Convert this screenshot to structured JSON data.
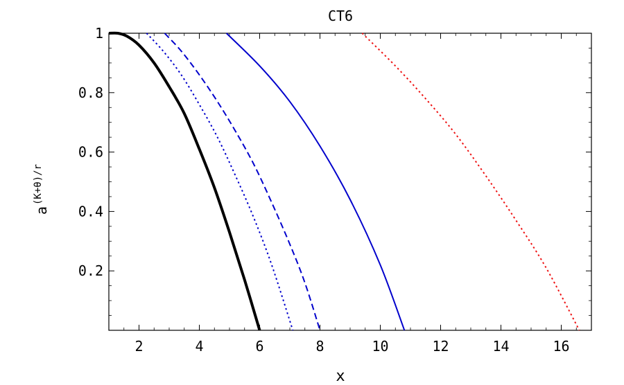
{
  "chart_data": {
    "type": "line",
    "title": "CT6",
    "xlabel": "x",
    "ylabel_base": "a",
    "ylabel_exponent": "(K+θ)/r",
    "xlim": [
      1,
      17
    ],
    "ylim": [
      0,
      1
    ],
    "xticks": [
      2,
      4,
      6,
      8,
      10,
      12,
      14,
      16
    ],
    "yticks": [
      0.2,
      0.4,
      0.6,
      0.8,
      1
    ],
    "ytick_labels": [
      "0.2",
      "0.4",
      "0.6",
      "0.8",
      "1"
    ],
    "grid": false,
    "legend": "none",
    "series": [
      {
        "color": "#000000",
        "style": "solid",
        "thick": true,
        "x": [
          1.0,
          1.3,
          1.6,
          2.0,
          2.5,
          3.0,
          3.5,
          4.0,
          4.5,
          5.0,
          5.5,
          6.0
        ],
        "y": [
          1.0,
          1.0,
          0.99,
          0.96,
          0.9,
          0.82,
          0.73,
          0.61,
          0.48,
          0.33,
          0.17,
          0.0
        ]
      },
      {
        "color": "#0000cc",
        "style": "dotted",
        "thick": false,
        "x": [
          2.25,
          2.8,
          3.4,
          4.0,
          4.6,
          5.2,
          5.8,
          6.4,
          7.1
        ],
        "y": [
          1.0,
          0.94,
          0.86,
          0.76,
          0.65,
          0.52,
          0.38,
          0.22,
          0.0
        ]
      },
      {
        "color": "#0000cc",
        "style": "dashed",
        "thick": false,
        "x": [
          2.85,
          3.4,
          4.0,
          4.6,
          5.2,
          5.8,
          6.4,
          7.0,
          7.5,
          8.0
        ],
        "y": [
          1.0,
          0.94,
          0.86,
          0.77,
          0.67,
          0.56,
          0.43,
          0.29,
          0.16,
          0.0
        ]
      },
      {
        "color": "#0000cc",
        "style": "solid",
        "thick": false,
        "x": [
          4.9,
          6.0,
          7.0,
          8.0,
          9.0,
          10.0,
          10.8
        ],
        "y": [
          1.0,
          0.89,
          0.77,
          0.62,
          0.44,
          0.22,
          0.0
        ]
      },
      {
        "color": "#ee1111",
        "style": "dotted",
        "thick": false,
        "x": [
          9.4,
          10.5,
          11.5,
          12.5,
          13.5,
          14.5,
          15.5,
          16.6
        ],
        "y": [
          1.0,
          0.89,
          0.78,
          0.66,
          0.52,
          0.37,
          0.21,
          0.0
        ]
      }
    ]
  }
}
